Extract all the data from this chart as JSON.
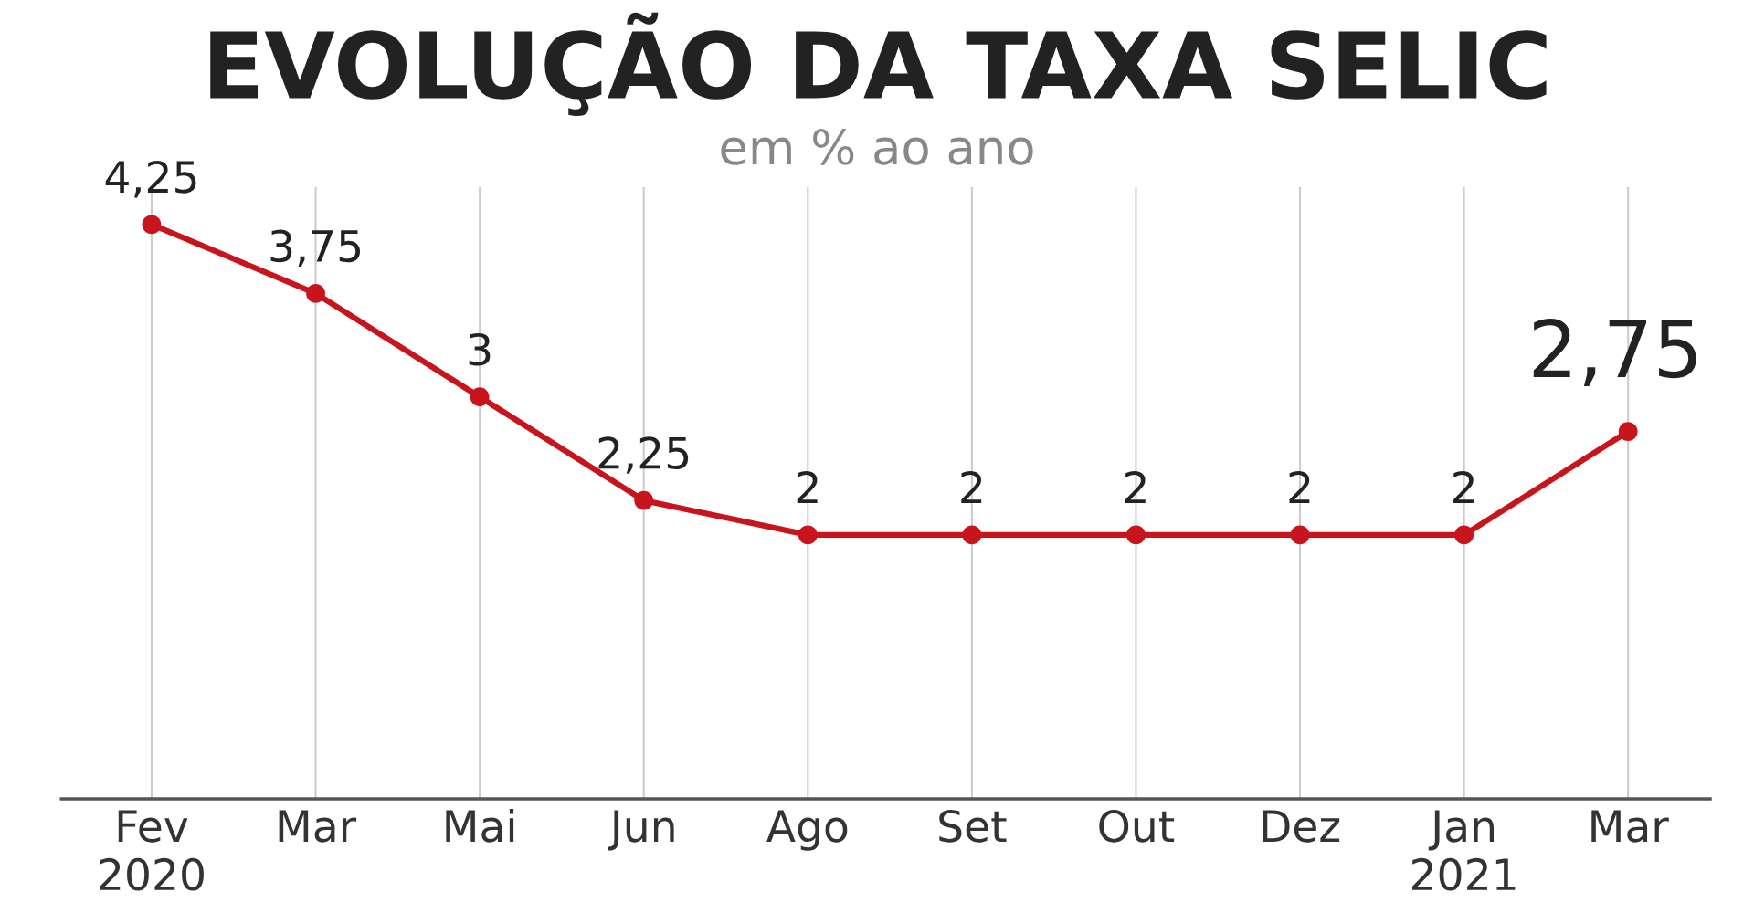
{
  "chart_data": {
    "type": "line",
    "title": "EVOLUÇÃO DA TAXA SELIC",
    "subtitle": "em % ao ano",
    "categories": [
      "Fev\n2020",
      "Mar",
      "Mai",
      "Jun",
      "Ago",
      "Set",
      "Out",
      "Dez",
      "Jan\n2021",
      "Mar"
    ],
    "series": [
      {
        "color": "#c8141c",
        "values": [
          4.25,
          3.75,
          3,
          2.25,
          2,
          2,
          2,
          2,
          2,
          2.75
        ],
        "value_labels": [
          "4,25",
          "3,75",
          "3",
          "2,25",
          "2",
          "2",
          "2",
          "2",
          "2",
          "2,75"
        ]
      }
    ],
    "marker": "circle",
    "line_style": "solid",
    "grid": "x",
    "legend": false,
    "tick_labels": "x"
  }
}
